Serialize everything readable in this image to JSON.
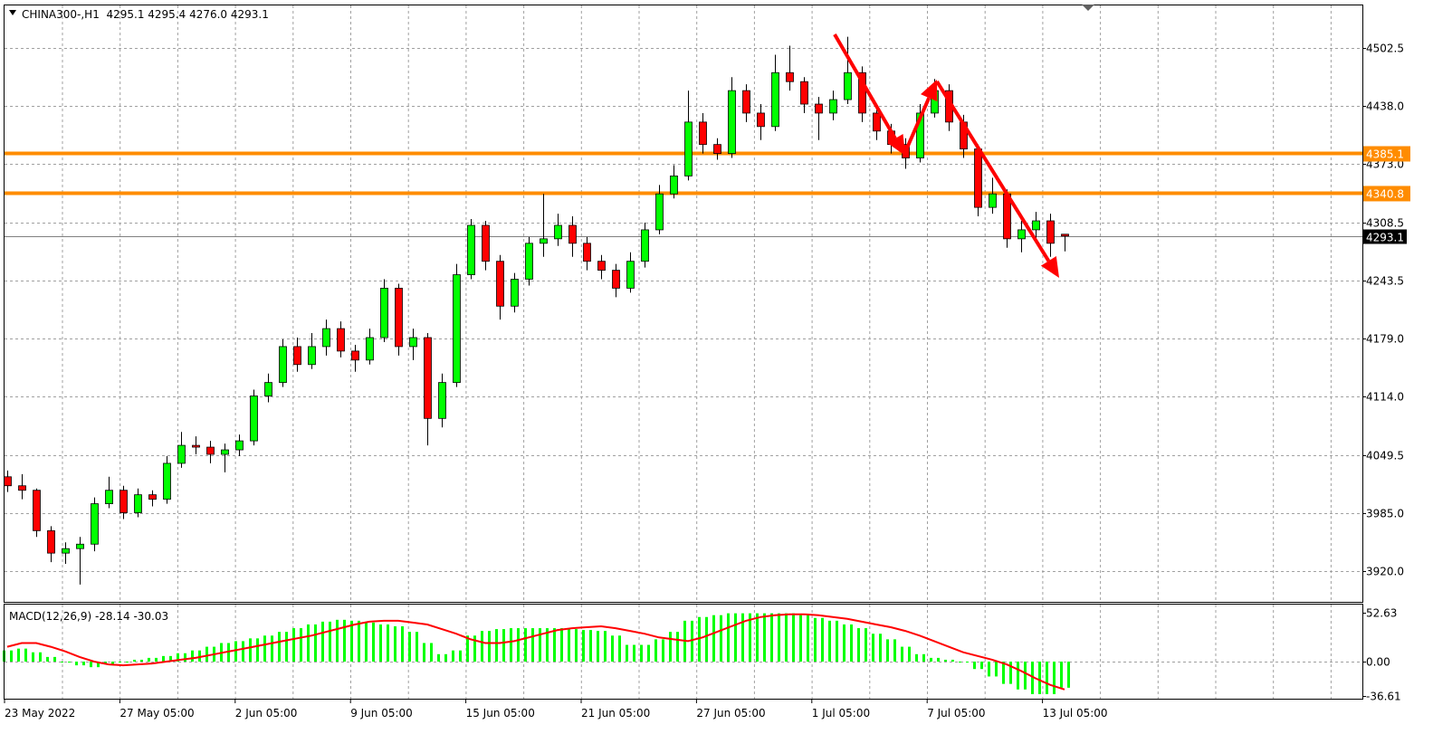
{
  "header": {
    "symbol_info": "CHINA300-,H1  4295.1 4295.4 4276.0 4293.1",
    "menu_icon": "triangle-down-icon"
  },
  "chart_data": {
    "type": "candlestick",
    "symbol": "CHINA300-",
    "timeframe": "H1",
    "ohlc_labels": [
      4295.1,
      4295.4,
      4276.0,
      4293.1
    ],
    "y_ticks": [
      "4502.5",
      "4438.0",
      "4373.0",
      "4308.5",
      "4243.5",
      "4179.0",
      "4114.0",
      "4049.5",
      "3985.0",
      "3920.0"
    ],
    "ylim": [
      3910,
      4530
    ],
    "x_ticks": [
      "23 May 2022",
      "27 May 05:00",
      "2 Jun 05:00",
      "9 Jun 05:00",
      "15 Jun 05:00",
      "21 Jun 05:00",
      "27 Jun 05:00",
      "1 Jul 05:00",
      "7 Jul 05:00",
      "13 Jul 05:00"
    ],
    "grid": true,
    "colors": {
      "bull": "#00ff00",
      "bear": "#ff0000",
      "wick": "#000000",
      "level": "#ff8c00",
      "annotation": "#ff0000",
      "current": "#808080"
    },
    "levels": [
      {
        "value": 4385.1,
        "label": "4385.1"
      },
      {
        "value": 4340.8,
        "label": "4340.8"
      }
    ],
    "current_price": {
      "value": 4293.1,
      "label": "4293.1"
    },
    "candles": [
      [
        4025,
        4032,
        4008,
        4015
      ],
      [
        4015,
        4028,
        4000,
        4010
      ],
      [
        4010,
        4012,
        3958,
        3965
      ],
      [
        3965,
        3970,
        3930,
        3940
      ],
      [
        3940,
        3952,
        3928,
        3945
      ],
      [
        3945,
        3958,
        3905,
        3950
      ],
      [
        3950,
        4002,
        3942,
        3995
      ],
      [
        3995,
        4025,
        3990,
        4010
      ],
      [
        4010,
        4015,
        3978,
        3985
      ],
      [
        3985,
        4012,
        3980,
        4005
      ],
      [
        4005,
        4010,
        3992,
        4000
      ],
      [
        4000,
        4048,
        3995,
        4040
      ],
      [
        4040,
        4075,
        4035,
        4060
      ],
      [
        4060,
        4070,
        4050,
        4058
      ],
      [
        4058,
        4065,
        4040,
        4050
      ],
      [
        4050,
        4062,
        4030,
        4055
      ],
      [
        4055,
        4072,
        4048,
        4065
      ],
      [
        4065,
        4122,
        4060,
        4115
      ],
      [
        4115,
        4140,
        4108,
        4130
      ],
      [
        4130,
        4178,
        4125,
        4170
      ],
      [
        4170,
        4180,
        4142,
        4150
      ],
      [
        4150,
        4185,
        4145,
        4170
      ],
      [
        4170,
        4200,
        4160,
        4190
      ],
      [
        4190,
        4198,
        4158,
        4165
      ],
      [
        4165,
        4172,
        4142,
        4155
      ],
      [
        4155,
        4190,
        4150,
        4180
      ],
      [
        4180,
        4245,
        4175,
        4235
      ],
      [
        4235,
        4240,
        4160,
        4170
      ],
      [
        4170,
        4190,
        4155,
        4180
      ],
      [
        4180,
        4185,
        4060,
        4090
      ],
      [
        4090,
        4140,
        4080,
        4130
      ],
      [
        4130,
        4262,
        4125,
        4250
      ],
      [
        4250,
        4312,
        4245,
        4305
      ],
      [
        4305,
        4310,
        4255,
        4265
      ],
      [
        4265,
        4272,
        4200,
        4215
      ],
      [
        4215,
        4252,
        4208,
        4245
      ],
      [
        4245,
        4292,
        4238,
        4285
      ],
      [
        4285,
        4340,
        4270,
        4290
      ],
      [
        4290,
        4318,
        4282,
        4305
      ],
      [
        4305,
        4315,
        4270,
        4285
      ],
      [
        4285,
        4292,
        4255,
        4265
      ],
      [
        4265,
        4272,
        4245,
        4255
      ],
      [
        4255,
        4262,
        4225,
        4235
      ],
      [
        4235,
        4275,
        4230,
        4265
      ],
      [
        4265,
        4308,
        4258,
        4300
      ],
      [
        4300,
        4350,
        4295,
        4340
      ],
      [
        4340,
        4372,
        4335,
        4360
      ],
      [
        4360,
        4455,
        4355,
        4420
      ],
      [
        4420,
        4430,
        4385,
        4395
      ],
      [
        4395,
        4402,
        4378,
        4385
      ],
      [
        4385,
        4470,
        4380,
        4455
      ],
      [
        4455,
        4462,
        4420,
        4430
      ],
      [
        4430,
        4440,
        4400,
        4415
      ],
      [
        4415,
        4495,
        4410,
        4475
      ],
      [
        4475,
        4505,
        4455,
        4465
      ],
      [
        4465,
        4470,
        4430,
        4440
      ],
      [
        4440,
        4448,
        4400,
        4430
      ],
      [
        4430,
        4455,
        4422,
        4445
      ],
      [
        4445,
        4515,
        4440,
        4475
      ],
      [
        4475,
        4482,
        4420,
        4430
      ],
      [
        4430,
        4440,
        4400,
        4410
      ],
      [
        4410,
        4418,
        4385,
        4395
      ],
      [
        4395,
        4402,
        4368,
        4380
      ],
      [
        4380,
        4440,
        4375,
        4430
      ],
      [
        4430,
        4468,
        4425,
        4455
      ],
      [
        4455,
        4462,
        4410,
        4420
      ],
      [
        4420,
        4428,
        4380,
        4390
      ],
      [
        4390,
        4395,
        4315,
        4325
      ],
      [
        4325,
        4358,
        4318,
        4340
      ],
      [
        4340,
        4345,
        4280,
        4290
      ],
      [
        4290,
        4310,
        4275,
        4300
      ],
      [
        4300,
        4320,
        4285,
        4310
      ],
      [
        4310,
        4318,
        4270,
        4285
      ],
      [
        4295.1,
        4295.4,
        4276.0,
        4293.1
      ]
    ],
    "macd": {
      "label": "MACD(12,26,9) -28.14 -30.03",
      "y_ticks": [
        "52.63",
        "0.00",
        "-36.61"
      ],
      "ylim": [
        -36.61,
        52.63
      ],
      "histogram_color": "#00ff00",
      "signal_color": "#ff0000",
      "main": [
        12,
        14,
        10,
        5,
        0,
        -4,
        -6,
        -3,
        0,
        2,
        4,
        6,
        9,
        12,
        16,
        20,
        22,
        25,
        28,
        32,
        36,
        40,
        43,
        45,
        44,
        42,
        40,
        38,
        32,
        20,
        8,
        12,
        28,
        33,
        35,
        36,
        36,
        36,
        36,
        35,
        34,
        33,
        28,
        18,
        18,
        24,
        32,
        44,
        48,
        50,
        52,
        52,
        52,
        52,
        52,
        50,
        47,
        44,
        40,
        36,
        30,
        24,
        16,
        8,
        4,
        2,
        0,
        -8,
        -16,
        -24,
        -30,
        -35,
        -35,
        -28.14
      ],
      "signal": [
        16,
        20,
        20,
        16,
        11,
        5,
        0,
        -3,
        -4,
        -3,
        -2,
        0,
        2,
        4,
        7,
        10,
        13,
        16,
        19,
        22,
        25,
        28,
        32,
        36,
        40,
        43,
        44,
        44,
        42,
        40,
        35,
        30,
        24,
        20,
        20,
        22,
        26,
        30,
        34,
        36,
        37,
        38,
        36,
        33,
        30,
        26,
        24,
        22,
        26,
        32,
        38,
        44,
        48,
        50,
        51,
        51,
        50,
        48,
        46,
        43,
        40,
        37,
        33,
        28,
        22,
        16,
        10,
        6,
        2,
        -3,
        -10,
        -18,
        -25,
        -30.03
      ]
    }
  }
}
